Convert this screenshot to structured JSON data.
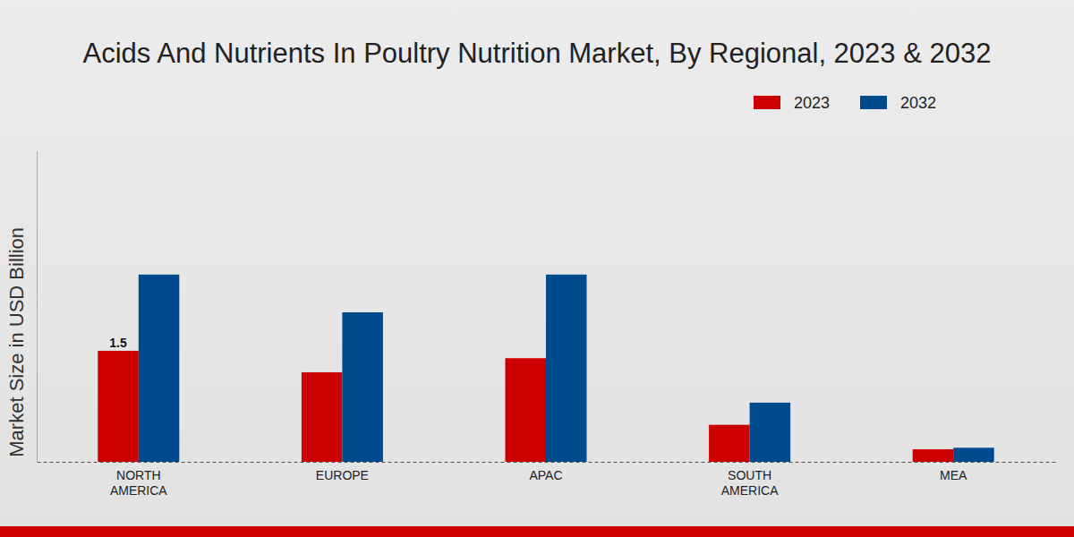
{
  "chart_data": {
    "type": "bar",
    "title": "Acids And Nutrients In Poultry Nutrition Market, By Regional, 2023 & 2032",
    "y_label": "Market Size in USD Billion",
    "categories": [
      "NORTH AMERICA",
      "EUROPE",
      "APAC",
      "SOUTH AMERICA",
      "MEA"
    ],
    "series": [
      {
        "name": "2023",
        "color": "#cc0000",
        "values": [
          1.5,
          1.21,
          1.4,
          0.5,
          0.17
        ],
        "value_labels": [
          "1.5",
          null,
          null,
          null,
          null
        ]
      },
      {
        "name": "2032",
        "color": "#004b8d",
        "values": [
          2.53,
          2.02,
          2.53,
          0.8,
          0.19
        ]
      }
    ],
    "ylim": [
      0,
      4.2
    ],
    "yticks": [],
    "legend": "top-right",
    "tick_labels": "x"
  }
}
